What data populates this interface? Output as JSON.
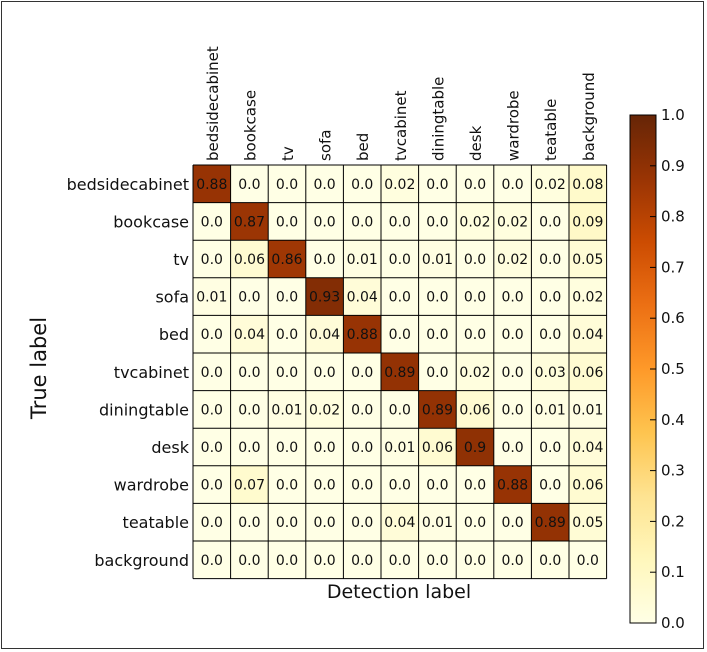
{
  "chart_data": {
    "type": "heatmap",
    "title": "",
    "xlabel": "Detection label",
    "ylabel": "True label",
    "x_categories": [
      "bedsidecabinet",
      "bookcase",
      "tv",
      "sofa",
      "bed",
      "tvcabinet",
      "diningtable",
      "desk",
      "wardrobe",
      "teatable",
      "background"
    ],
    "y_categories": [
      "bedsidecabinet",
      "bookcase",
      "tv",
      "sofa",
      "bed",
      "tvcabinet",
      "diningtable",
      "desk",
      "wardrobe",
      "teatable",
      "background"
    ],
    "cell_labels": [
      [
        "0.88",
        "0.0",
        "0.0",
        "0.0",
        "0.0",
        "0.02",
        "0.0",
        "0.0",
        "0.0",
        "0.02",
        "0.08"
      ],
      [
        "0.0",
        "0.87",
        "0.0",
        "0.0",
        "0.0",
        "0.0",
        "0.0",
        "0.02",
        "0.02",
        "0.0",
        "0.09"
      ],
      [
        "0.0",
        "0.06",
        "0.86",
        "0.0",
        "0.01",
        "0.0",
        "0.01",
        "0.0",
        "0.02",
        "0.0",
        "0.05"
      ],
      [
        "0.01",
        "0.0",
        "0.0",
        "0.93",
        "0.04",
        "0.0",
        "0.0",
        "0.0",
        "0.0",
        "0.0",
        "0.02"
      ],
      [
        "0.0",
        "0.04",
        "0.0",
        "0.04",
        "0.88",
        "0.0",
        "0.0",
        "0.0",
        "0.0",
        "0.0",
        "0.04"
      ],
      [
        "0.0",
        "0.0",
        "0.0",
        "0.0",
        "0.0",
        "0.89",
        "0.0",
        "0.02",
        "0.0",
        "0.03",
        "0.06"
      ],
      [
        "0.0",
        "0.0",
        "0.01",
        "0.02",
        "0.0",
        "0.0",
        "0.89",
        "0.06",
        "0.0",
        "0.01",
        "0.01"
      ],
      [
        "0.0",
        "0.0",
        "0.0",
        "0.0",
        "0.0",
        "0.01",
        "0.06",
        "0.9",
        "0.0",
        "0.0",
        "0.04"
      ],
      [
        "0.0",
        "0.07",
        "0.0",
        "0.0",
        "0.0",
        "0.0",
        "0.0",
        "0.0",
        "0.88",
        "0.0",
        "0.06"
      ],
      [
        "0.0",
        "0.0",
        "0.0",
        "0.0",
        "0.0",
        "0.04",
        "0.01",
        "0.0",
        "0.0",
        "0.89",
        "0.05"
      ],
      [
        "0.0",
        "0.0",
        "0.0",
        "0.0",
        "0.0",
        "0.0",
        "0.0",
        "0.0",
        "0.0",
        "0.0",
        "0.0"
      ]
    ],
    "colorbar": {
      "range": [
        0.0,
        1.0
      ],
      "tick_labels": [
        "0.0",
        "0.1",
        "0.2",
        "0.3",
        "0.4",
        "0.5",
        "0.6",
        "0.7",
        "0.8",
        "0.9",
        "1.0"
      ],
      "colormap": [
        "#ffffe5",
        "#fff7bc",
        "#fee391",
        "#fec44f",
        "#fe9929",
        "#ec7014",
        "#cc4c02",
        "#993404",
        "#662506"
      ]
    },
    "legend": "none",
    "grid": true
  }
}
